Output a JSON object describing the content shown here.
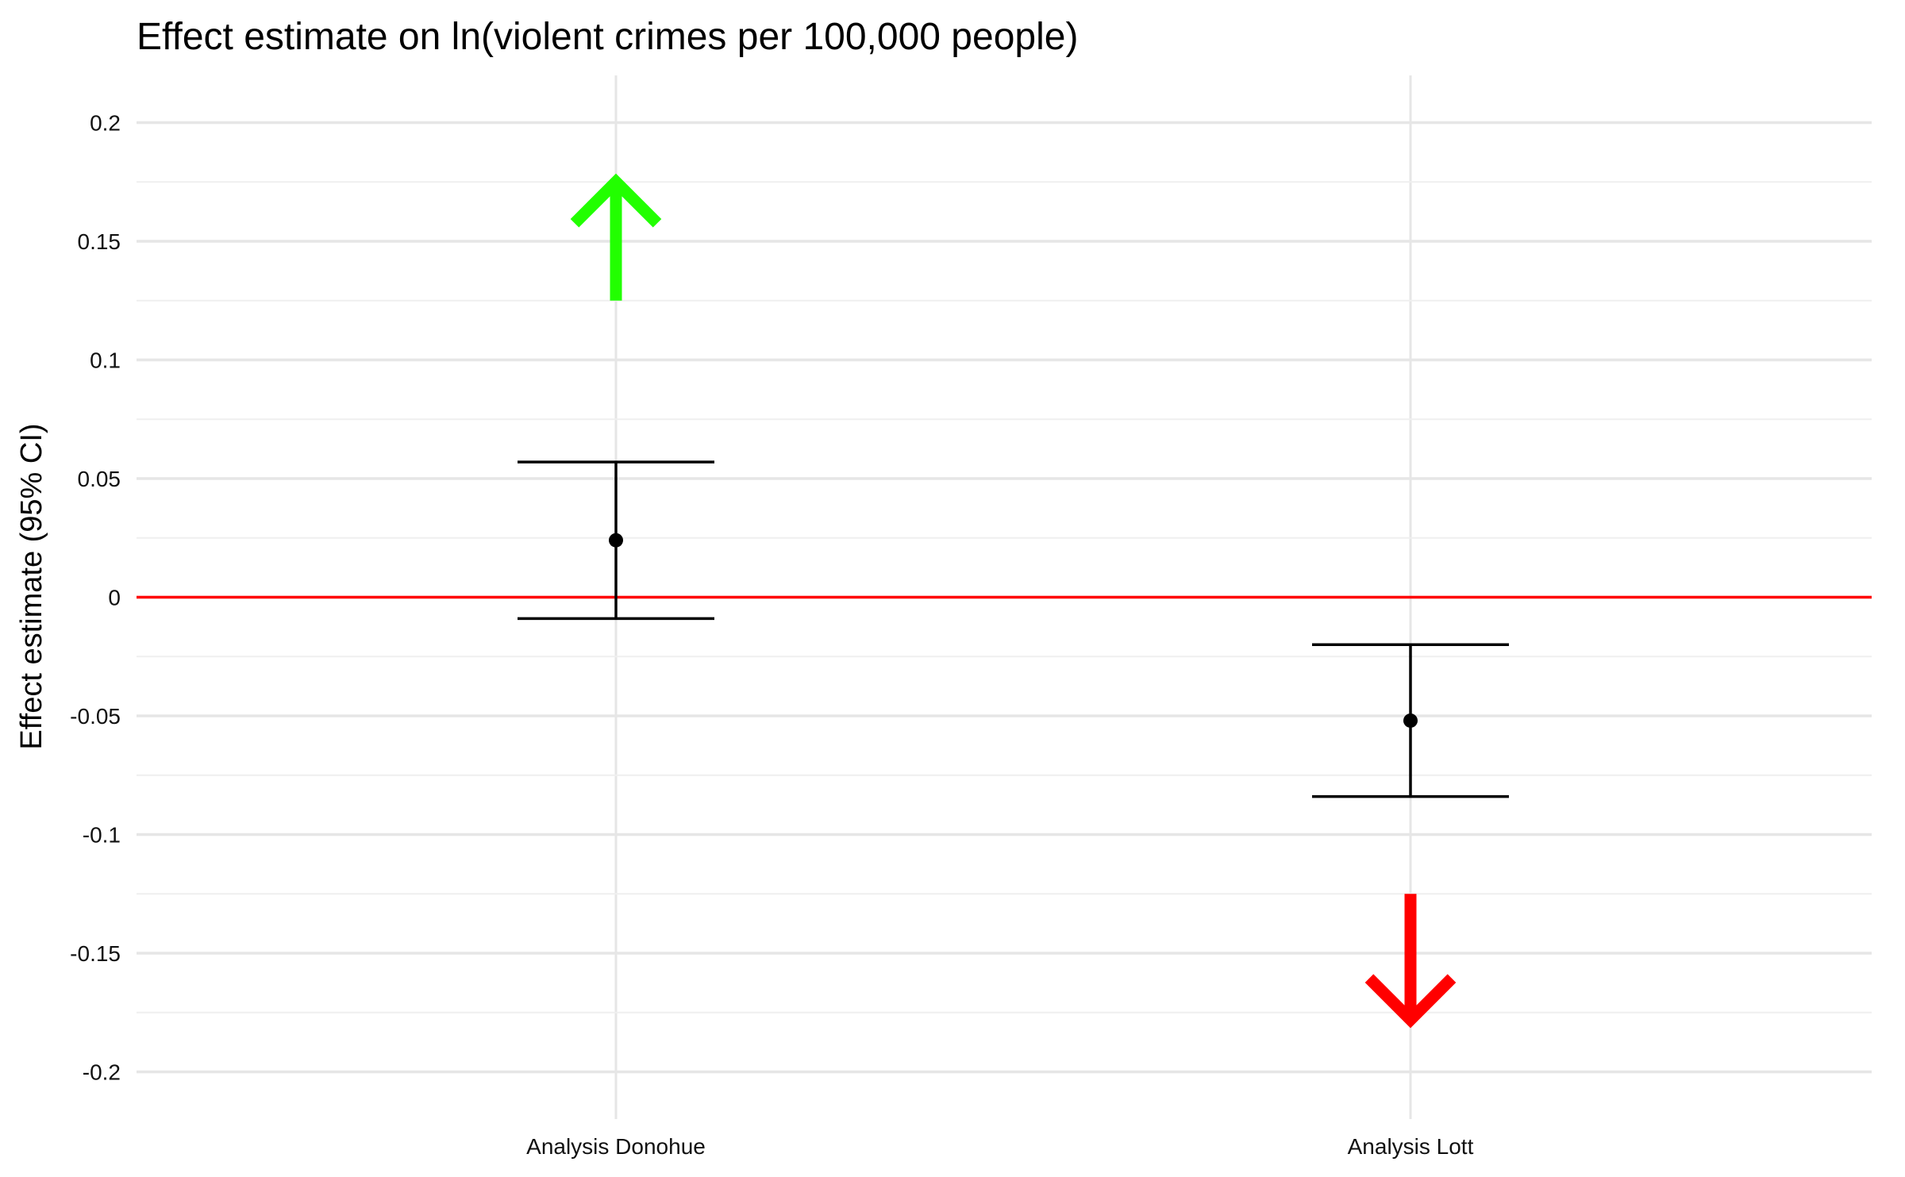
{
  "chart_data": {
    "type": "errorbar",
    "title": "Effect estimate on ln(violent crimes per 100,000 people)",
    "xlabel": "",
    "ylabel": "Effect estimate (95% CI)",
    "ylim": [
      -0.21,
      0.2
    ],
    "y_ticks": [
      0.2,
      0.15,
      0.1,
      0.05,
      0,
      -0.05,
      -0.1,
      -0.15,
      -0.2
    ],
    "y_tick_labels": [
      "0.2",
      "0.15",
      "0.1",
      "0.05",
      "0",
      "-0.05",
      "-0.1",
      "-0.15",
      "-0.2"
    ],
    "categories": [
      "Analysis Donohue",
      "Analysis Lott"
    ],
    "points": [
      {
        "category": "Analysis Donohue",
        "estimate": 0.024,
        "ci_low": -0.009,
        "ci_high": 0.057
      },
      {
        "category": "Analysis Lott",
        "estimate": -0.052,
        "ci_low": -0.084,
        "ci_high": -0.02
      }
    ],
    "reference_line": {
      "y": 0,
      "color": "#ff0000"
    },
    "arrows": [
      {
        "category": "Analysis Donohue",
        "direction": "up",
        "from_y": 0.125,
        "to_y": 0.175,
        "color": "#22ff00"
      },
      {
        "category": "Analysis Lott",
        "direction": "down",
        "from_y": -0.125,
        "to_y": -0.178,
        "color": "#ff0000"
      }
    ],
    "grid": true,
    "legend": "none",
    "colors": {
      "error_bar": "#000000",
      "point": "#000000",
      "grid": "#e6e6e6"
    }
  }
}
